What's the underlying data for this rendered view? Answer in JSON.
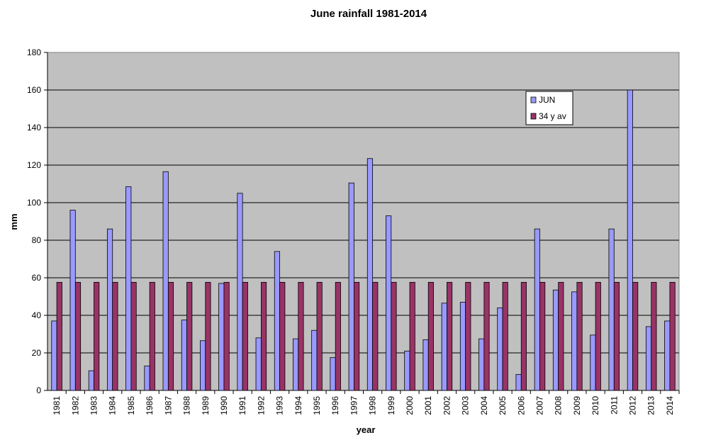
{
  "chart_data": {
    "type": "bar",
    "title": "June rainfall 1981-2014",
    "xlabel": "year",
    "ylabel": "mm",
    "ylim": [
      0,
      180
    ],
    "yticks": [
      0,
      20,
      40,
      60,
      80,
      100,
      120,
      140,
      160,
      180
    ],
    "grid": true,
    "legend_position": "top-right",
    "plot_background": "#c0c0c0",
    "categories": [
      "1981",
      "1982",
      "1983",
      "1984",
      "1985",
      "1986",
      "1987",
      "1988",
      "1989",
      "1990",
      "1991",
      "1992",
      "1993",
      "1994",
      "1995",
      "1996",
      "1997",
      "1998",
      "1999",
      "2000",
      "2001",
      "2002",
      "2003",
      "2004",
      "2005",
      "2006",
      "2007",
      "2008",
      "2009",
      "2010",
      "2011",
      "2012",
      "2013",
      "2014"
    ],
    "series": [
      {
        "name": "JUN",
        "color": "#9999ff",
        "values": [
          37,
          96,
          10.5,
          86,
          108.5,
          13,
          116.5,
          37.5,
          26.5,
          57,
          105,
          28,
          74,
          27.5,
          32,
          17.5,
          110.5,
          123.5,
          93,
          21,
          27,
          46.5,
          47,
          27.5,
          44,
          8.5,
          86,
          53.5,
          52.5,
          29.5,
          86,
          160,
          34,
          37
        ]
      },
      {
        "name": "34 y av",
        "color": "#993366",
        "values": [
          57.6,
          57.6,
          57.6,
          57.6,
          57.6,
          57.6,
          57.6,
          57.6,
          57.6,
          57.6,
          57.6,
          57.6,
          57.6,
          57.6,
          57.6,
          57.6,
          57.6,
          57.6,
          57.6,
          57.6,
          57.6,
          57.6,
          57.6,
          57.6,
          57.6,
          57.6,
          57.6,
          57.6,
          57.6,
          57.6,
          57.6,
          57.6,
          57.6,
          57.6
        ]
      }
    ]
  }
}
